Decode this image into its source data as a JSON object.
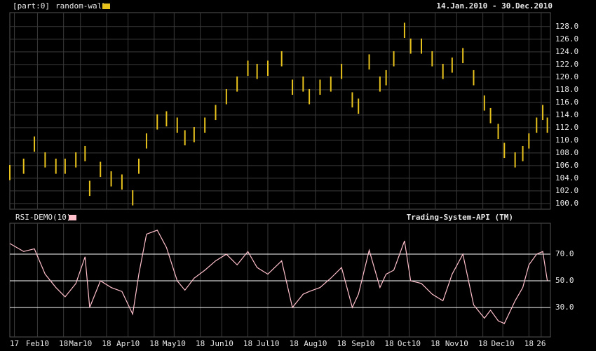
{
  "chart_data": [
    {
      "type": "hilo",
      "panel_label": "[part:0]",
      "date_range": "14.Jan.2010 - 30.Dec.2010",
      "xlim": [
        14,
        366
      ],
      "ylim": [
        99.1,
        130.2
      ],
      "yticks": [
        {
          "value": 100,
          "label": "100.0"
        },
        {
          "value": 102,
          "label": "102.0"
        },
        {
          "value": 104,
          "label": "104.0"
        },
        {
          "value": 106,
          "label": "106.0"
        },
        {
          "value": 108,
          "label": "108.0"
        },
        {
          "value": 110,
          "label": "110.0"
        },
        {
          "value": 112,
          "label": "112.0"
        },
        {
          "value": 114,
          "label": "114.0"
        },
        {
          "value": 116,
          "label": "116.0"
        },
        {
          "value": 118,
          "label": "118.0"
        },
        {
          "value": 120,
          "label": "120.0"
        },
        {
          "value": 122,
          "label": "122.0"
        },
        {
          "value": 124,
          "label": "124.0"
        },
        {
          "value": 126,
          "label": "126.0"
        },
        {
          "value": 128,
          "label": "128.0"
        }
      ],
      "grid": true,
      "x": [
        14,
        23,
        30,
        37,
        44,
        50,
        57,
        63,
        66,
        73,
        80,
        87,
        94,
        98,
        103,
        110,
        116,
        123,
        128,
        134,
        141,
        148,
        155,
        162,
        169,
        175,
        182,
        191,
        198,
        205,
        209,
        216,
        223,
        230,
        237,
        241,
        248,
        255,
        259,
        264,
        271,
        275,
        282,
        289,
        296,
        302,
        309,
        316,
        323,
        327,
        332,
        336,
        343,
        348,
        352,
        357,
        361,
        364
      ],
      "series": [
        {
          "name": "random-walk",
          "color": "#e8c21c",
          "low": [
            103.7,
            104.7,
            108.2,
            105.7,
            104.7,
            104.7,
            105.7,
            106.7,
            101.2,
            104.2,
            102.7,
            102.2,
            99.7,
            104.7,
            108.7,
            111.7,
            112.2,
            111.2,
            109.2,
            109.7,
            111.2,
            113.2,
            115.7,
            117.7,
            120.2,
            119.7,
            120.2,
            121.7,
            117.2,
            117.7,
            115.7,
            117.2,
            117.7,
            119.7,
            115.2,
            114.2,
            121.2,
            117.7,
            118.7,
            121.7,
            126.2,
            123.7,
            123.7,
            121.7,
            119.7,
            120.7,
            122.2,
            118.7,
            114.7,
            112.7,
            110.2,
            107.2,
            105.7,
            106.7,
            108.7,
            111.2,
            113.2,
            111.2
          ],
          "high": [
            106.1,
            107.1,
            110.6,
            108.1,
            107.1,
            107.1,
            108.1,
            109.1,
            103.6,
            106.6,
            105.1,
            104.6,
            102.1,
            107.1,
            111.1,
            114.1,
            114.6,
            113.6,
            111.6,
            112.1,
            113.6,
            115.6,
            118.1,
            120.1,
            122.6,
            122.1,
            122.6,
            124.1,
            119.6,
            120.1,
            118.1,
            119.6,
            120.1,
            122.1,
            117.6,
            116.6,
            123.6,
            120.1,
            121.1,
            124.1,
            128.6,
            126.1,
            126.1,
            124.1,
            122.1,
            123.1,
            124.6,
            121.1,
            117.1,
            115.1,
            112.6,
            109.6,
            108.1,
            109.1,
            111.1,
            113.6,
            115.6,
            113.6
          ]
        }
      ]
    },
    {
      "type": "line",
      "annotation": "Trading-System-API (TM)",
      "xlim": [
        14,
        366
      ],
      "ylim": [
        7.9,
        93.2
      ],
      "yticks": [
        {
          "value": 30,
          "label": "30.0"
        },
        {
          "value": 50,
          "label": "50.0"
        },
        {
          "value": 70,
          "label": "70.0"
        }
      ],
      "xticks": [
        {
          "value": 17,
          "label": "17"
        },
        {
          "value": 32,
          "label": "Feb10"
        },
        {
          "value": 49,
          "label": "18"
        },
        {
          "value": 60,
          "label": "Mar10"
        },
        {
          "value": 77,
          "label": "18"
        },
        {
          "value": 91,
          "label": "Apr10"
        },
        {
          "value": 108,
          "label": "18"
        },
        {
          "value": 121,
          "label": "May10"
        },
        {
          "value": 138,
          "label": "18"
        },
        {
          "value": 152,
          "label": "Jun10"
        },
        {
          "value": 169,
          "label": "18"
        },
        {
          "value": 182,
          "label": "Jul10"
        },
        {
          "value": 199,
          "label": "18"
        },
        {
          "value": 213,
          "label": "Aug10"
        },
        {
          "value": 230,
          "label": "18"
        },
        {
          "value": 244,
          "label": "Sep10"
        },
        {
          "value": 261,
          "label": "18"
        },
        {
          "value": 274,
          "label": "Oct10"
        },
        {
          "value": 291,
          "label": "18"
        },
        {
          "value": 305,
          "label": "Nov10"
        },
        {
          "value": 322,
          "label": "18"
        },
        {
          "value": 335,
          "label": "Dec10"
        },
        {
          "value": 352,
          "label": "18"
        },
        {
          "value": 360,
          "label": "26"
        }
      ],
      "x": [
        14,
        23,
        30,
        37,
        44,
        50,
        57,
        63,
        66,
        73,
        80,
        87,
        94,
        98,
        103,
        110,
        116,
        123,
        128,
        134,
        141,
        148,
        155,
        162,
        169,
        175,
        182,
        191,
        198,
        205,
        209,
        216,
        223,
        230,
        237,
        241,
        248,
        255,
        259,
        264,
        271,
        275,
        282,
        289,
        296,
        302,
        309,
        316,
        323,
        327,
        332,
        336,
        343,
        348,
        352,
        357,
        361,
        364
      ],
      "series": [
        {
          "name": "RSI-DEMO(10)",
          "color": "#ffc0cb",
          "values": [
            78,
            72,
            74,
            55,
            45,
            38,
            48,
            68,
            30,
            50,
            45,
            42,
            25,
            55,
            85,
            88,
            75,
            50,
            43,
            52,
            58,
            65,
            70,
            62,
            72,
            60,
            55,
            65,
            30,
            40,
            42,
            45,
            52,
            60,
            30,
            40,
            73,
            45,
            55,
            58,
            80,
            50,
            48,
            40,
            35,
            55,
            70,
            32,
            22,
            28,
            20,
            18,
            35,
            45,
            62,
            70,
            72,
            50
          ]
        }
      ]
    }
  ]
}
